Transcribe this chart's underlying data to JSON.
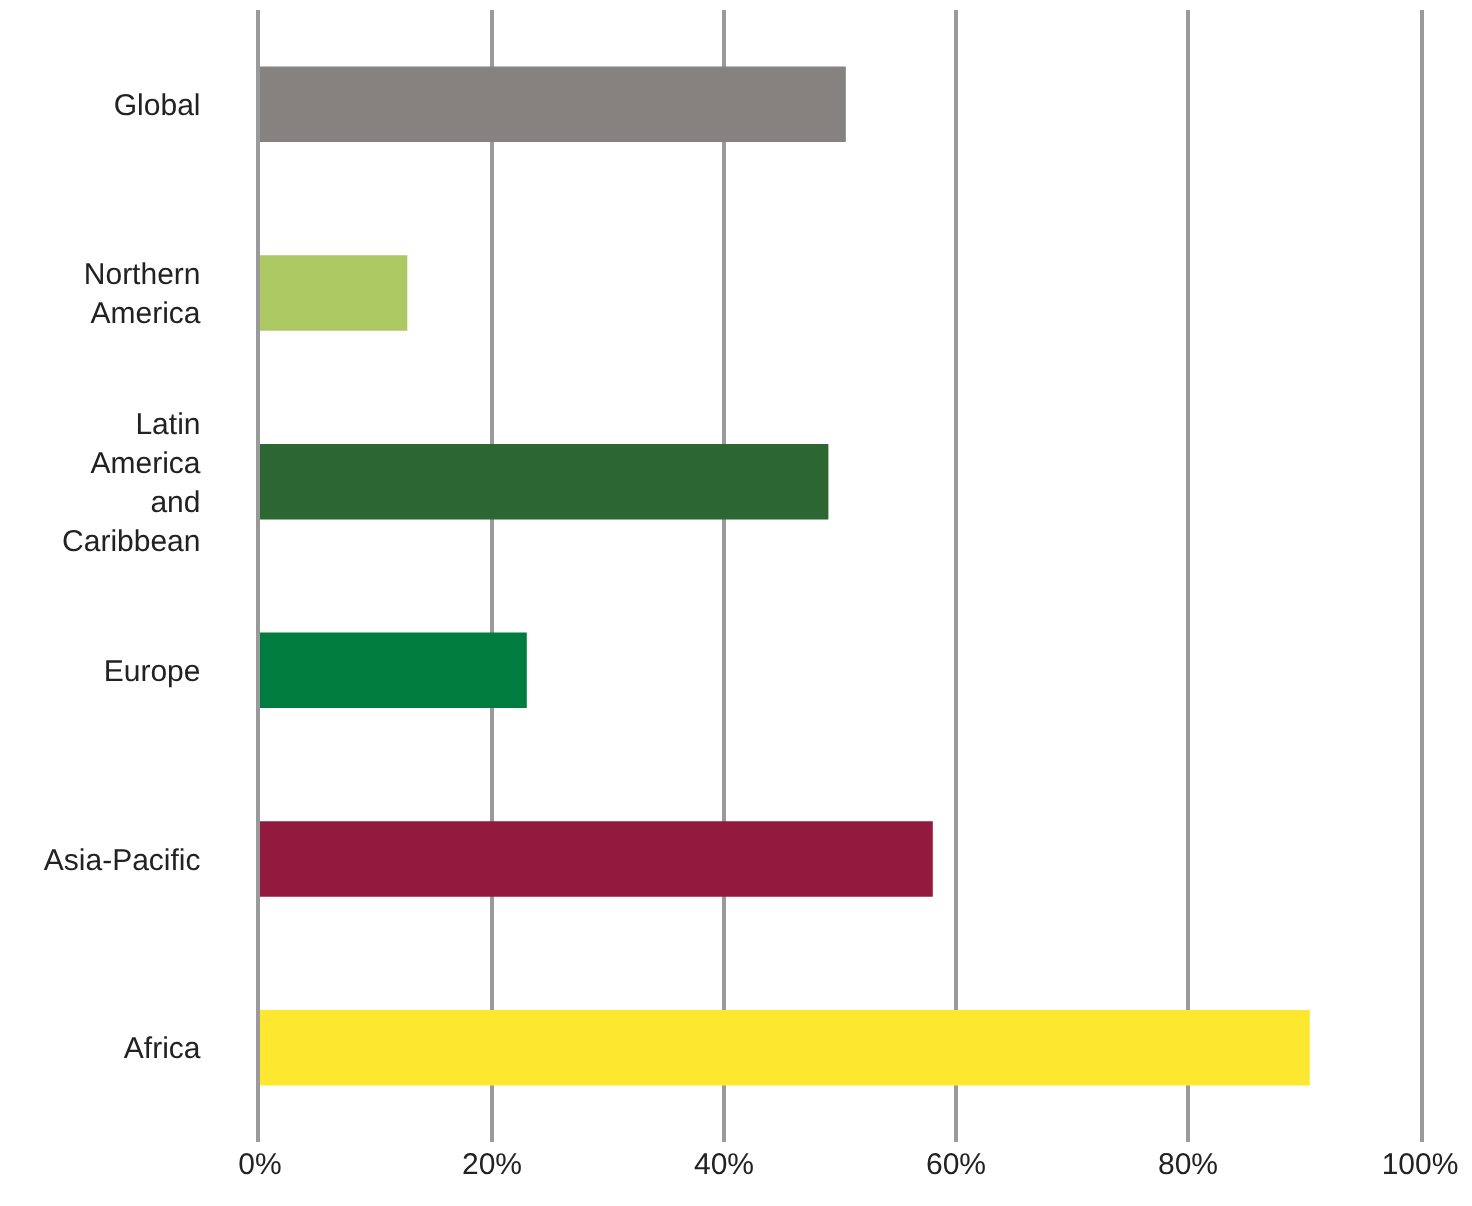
{
  "chart_data": {
    "type": "bar",
    "orientation": "horizontal",
    "categories": [
      "Global",
      "Northern America",
      "Latin America and Caribbean",
      "Europe",
      "Asia-Pacific",
      "Africa"
    ],
    "values": [
      50.5,
      12.7,
      49,
      23,
      58,
      90.5
    ],
    "colors": [
      "#858280",
      "#acc862",
      "#2c6633",
      "#007d3e",
      "#921a3e",
      "#fde72f"
    ],
    "xlim": [
      0,
      100
    ],
    "xticks": [
      {
        "value": 0,
        "label": "0%"
      },
      {
        "value": 20,
        "label": "20%"
      },
      {
        "value": 40,
        "label": "40%"
      },
      {
        "value": 60,
        "label": "60%"
      },
      {
        "value": 80,
        "label": "80%"
      },
      {
        "value": 100,
        "label": "100%"
      }
    ],
    "grid": "x"
  }
}
